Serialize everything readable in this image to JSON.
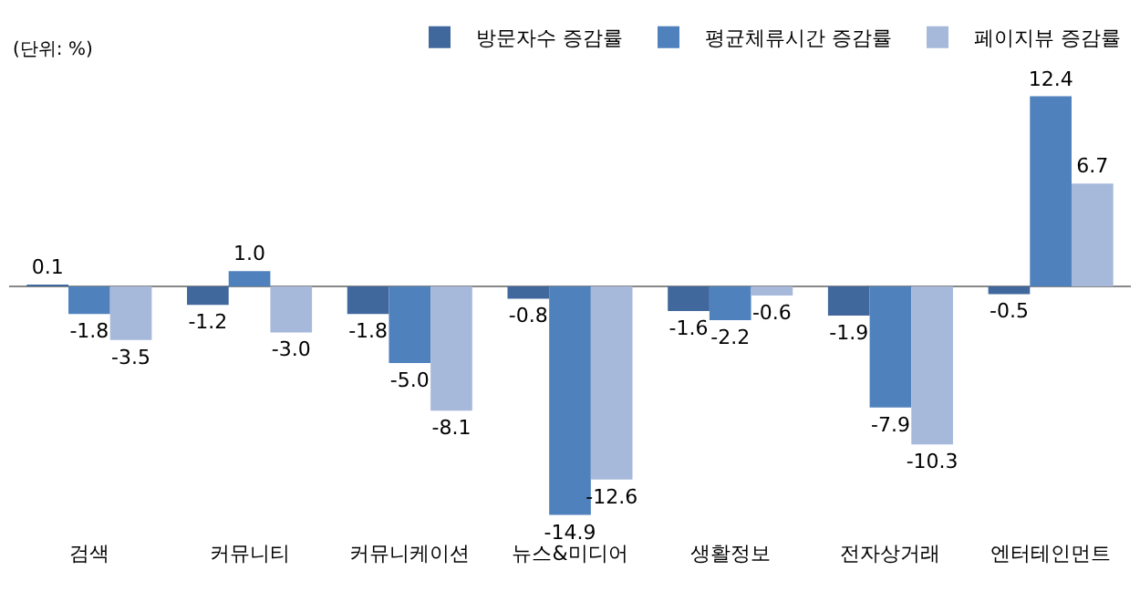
{
  "chart_data": {
    "type": "bar",
    "categories": [
      "검색",
      "커뮤니티",
      "커뮤니케이션",
      "뉴스&미디어",
      "생활정보",
      "전자상거래",
      "엔터테인먼트"
    ],
    "series": [
      {
        "name": "방문자수 증감률",
        "color": "#41689c",
        "values": [
          0.1,
          -1.2,
          -1.8,
          -0.8,
          -1.6,
          -1.9,
          -0.5
        ],
        "value_labels": [
          "0.1",
          "-1.2",
          "-1.8",
          "-0.8",
          "-1.6",
          "-1.9",
          "-0.5"
        ]
      },
      {
        "name": "평균체류시간 증감률",
        "color": "#4f81bd",
        "values": [
          -1.8,
          1.0,
          -5.0,
          -14.9,
          -2.2,
          -7.9,
          12.4
        ],
        "value_labels": [
          "-1.8",
          "1.0",
          "-5.0",
          "-14.9",
          "-2.2",
          "-7.9",
          "12.4"
        ]
      },
      {
        "name": "페이지뷰 증감률",
        "color": "#a7b9da",
        "values": [
          -3.5,
          -3.0,
          -8.1,
          -12.6,
          -0.6,
          -10.3,
          6.7
        ],
        "value_labels": [
          "-3.5",
          "-3.0",
          "-8.1",
          "-12.6",
          "-0.6",
          "-10.3",
          "6.7"
        ]
      }
    ],
    "tick_labels": "x",
    "legend": "top right",
    "annotations": [
      "(단위: %)"
    ]
  }
}
